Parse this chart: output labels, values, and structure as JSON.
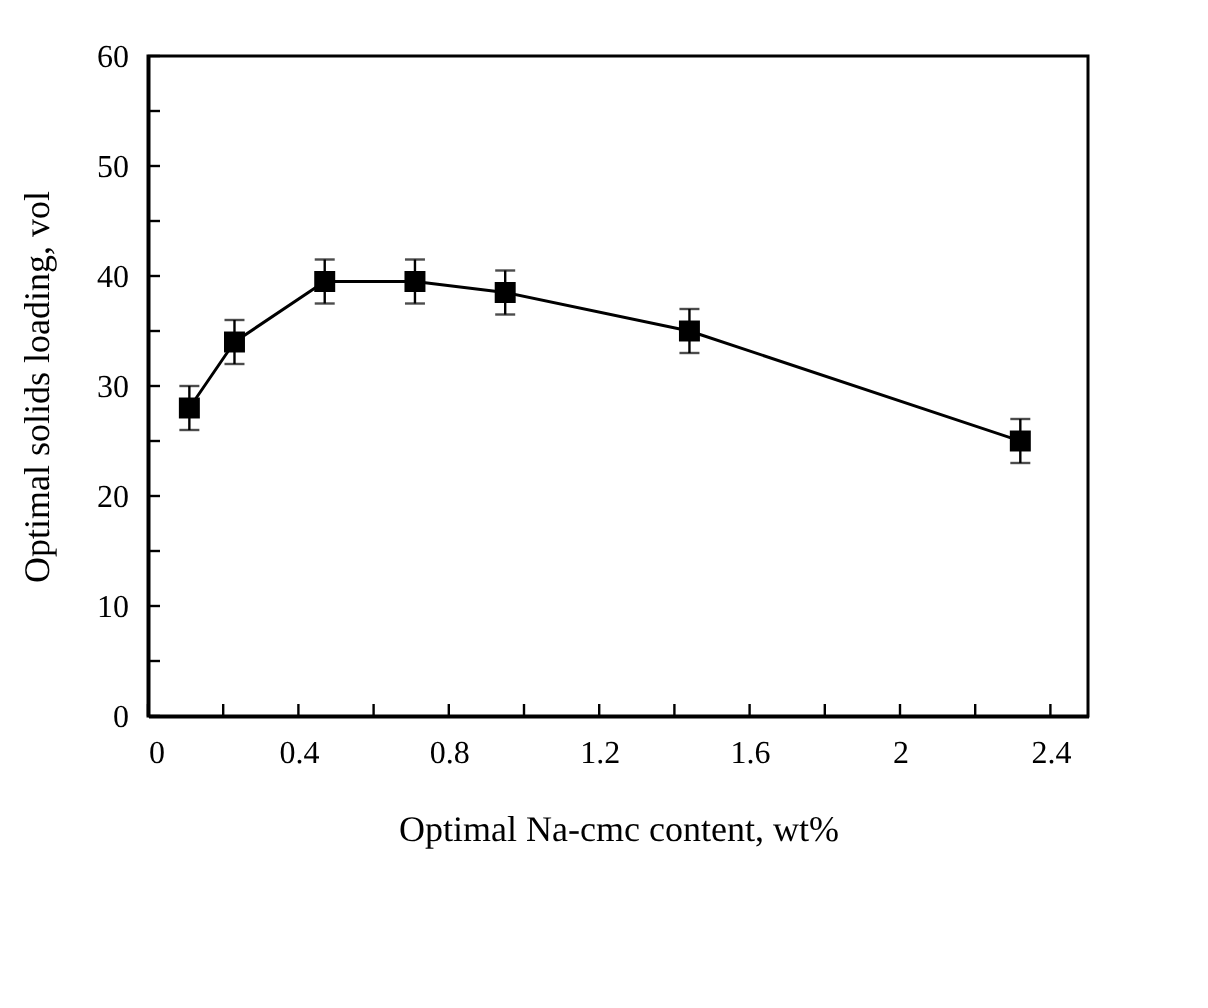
{
  "chart_data": {
    "type": "line",
    "xlabel": "Optimal Na-cmc content, wt%",
    "ylabel": "Optimal solids loading, vol",
    "x": [
      0.11,
      0.23,
      0.47,
      0.71,
      0.95,
      1.44,
      2.32
    ],
    "series": [
      {
        "color": "#000000",
        "values": [
          28,
          34,
          39.5,
          39.5,
          38.5,
          35,
          25
        ],
        "errors": [
          2,
          2,
          2,
          2,
          2,
          2,
          2
        ]
      }
    ],
    "xlim": [
      0,
      2.5
    ],
    "xticks": [
      0,
      {
        "value": 0.2,
        "label": null
      },
      0.4,
      {
        "value": 0.6,
        "label": null
      },
      0.8,
      {
        "value": 1.0,
        "label": null
      },
      1.2,
      {
        "value": 1.4,
        "label": null
      },
      1.6,
      {
        "value": 1.8,
        "label": null
      },
      2,
      {
        "value": 2.2,
        "label": null
      },
      2.4
    ],
    "ylim": [
      0,
      60
    ],
    "yticks": [
      0,
      {
        "value": 5,
        "label": null
      },
      10,
      {
        "value": 15,
        "label": null
      },
      20,
      {
        "value": 25,
        "label": null
      },
      30,
      {
        "value": 35,
        "label": null
      },
      40,
      {
        "value": 45,
        "label": null
      },
      50,
      {
        "value": 55,
        "label": null
      },
      60
    ],
    "marker": "square",
    "line_style": "solid",
    "grid": false
  }
}
